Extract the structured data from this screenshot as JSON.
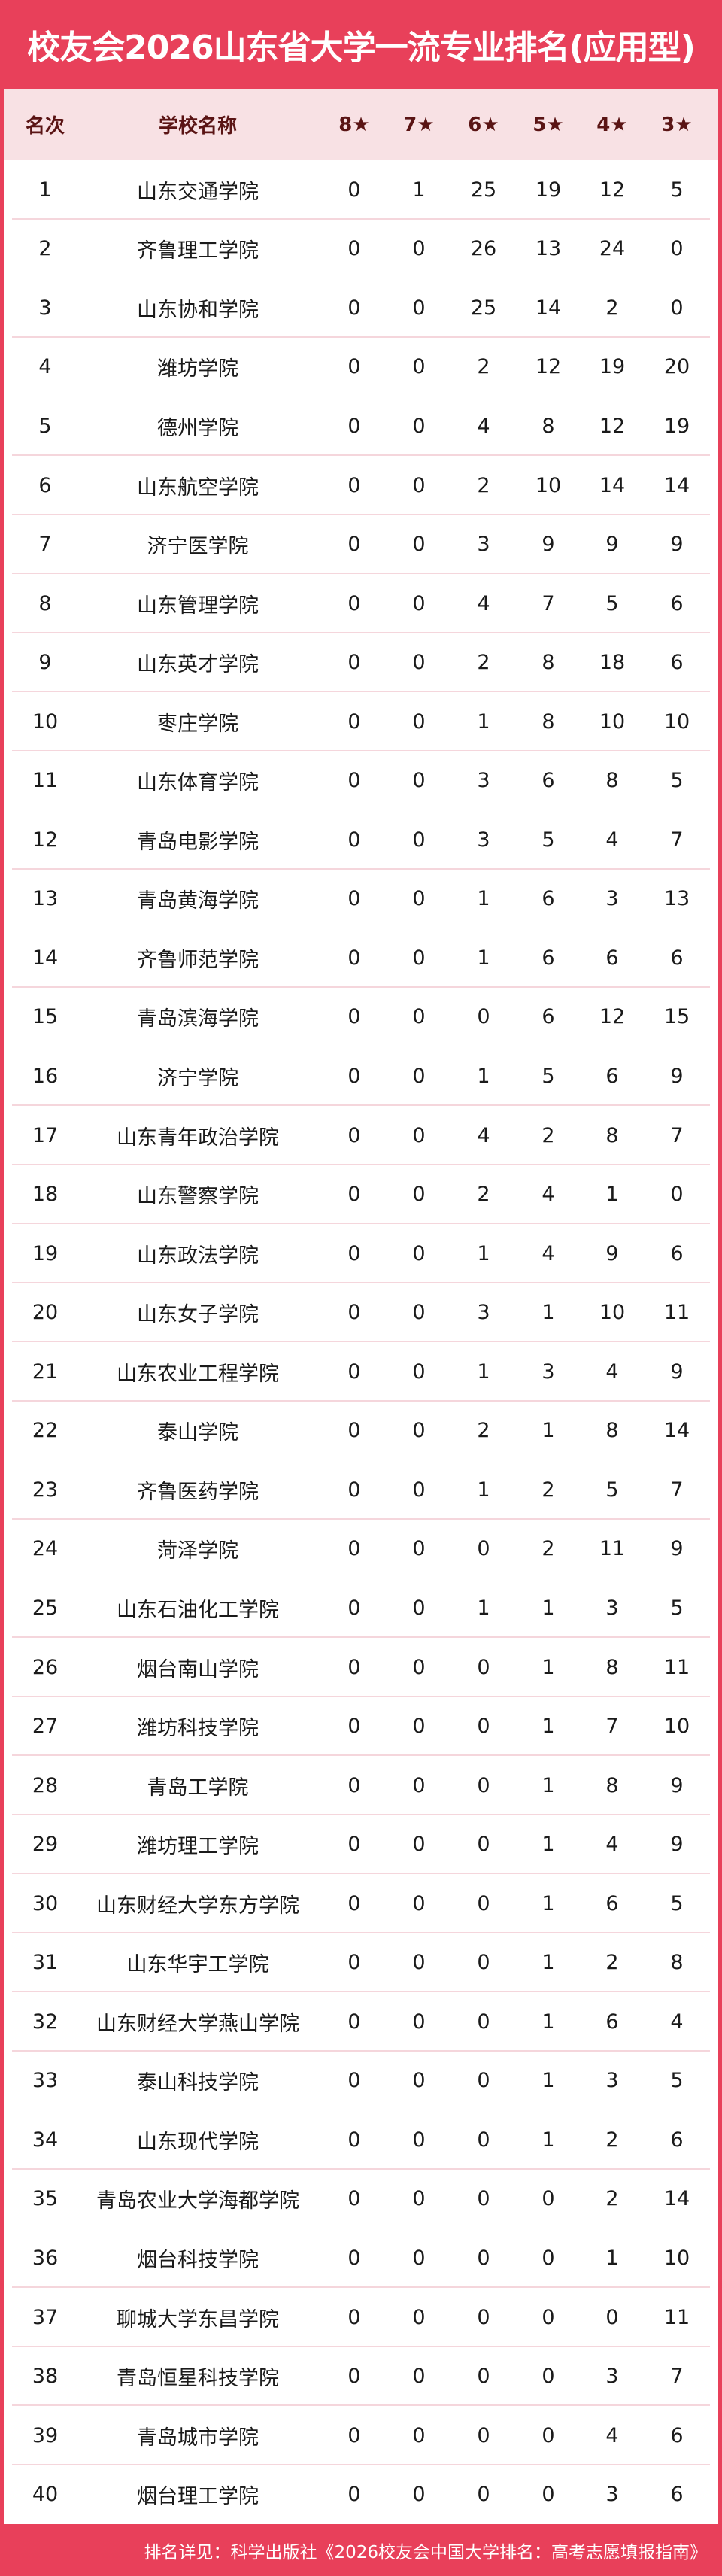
{
  "title": "校友会2026山东省大学一流专业排名(应用型)",
  "columns": [
    "名次",
    "学校名称",
    "8★",
    "7★",
    "6★",
    "5★",
    "4★",
    "3★"
  ],
  "colors": {
    "brand": "#e8405a",
    "header_bg": "#f8e1e4",
    "header_text": "#5a1414"
  },
  "rows": [
    [
      "1",
      "山东交通学院",
      "0",
      "1",
      "25",
      "19",
      "12",
      "5"
    ],
    [
      "2",
      "齐鲁理工学院",
      "0",
      "0",
      "26",
      "13",
      "24",
      "0"
    ],
    [
      "3",
      "山东协和学院",
      "0",
      "0",
      "25",
      "14",
      "2",
      "0"
    ],
    [
      "4",
      "潍坊学院",
      "0",
      "0",
      "2",
      "12",
      "19",
      "20"
    ],
    [
      "5",
      "德州学院",
      "0",
      "0",
      "4",
      "8",
      "12",
      "19"
    ],
    [
      "6",
      "山东航空学院",
      "0",
      "0",
      "2",
      "10",
      "14",
      "14"
    ],
    [
      "7",
      "济宁医学院",
      "0",
      "0",
      "3",
      "9",
      "9",
      "9"
    ],
    [
      "8",
      "山东管理学院",
      "0",
      "0",
      "4",
      "7",
      "5",
      "6"
    ],
    [
      "9",
      "山东英才学院",
      "0",
      "0",
      "2",
      "8",
      "18",
      "6"
    ],
    [
      "10",
      "枣庄学院",
      "0",
      "0",
      "1",
      "8",
      "10",
      "10"
    ],
    [
      "11",
      "山东体育学院",
      "0",
      "0",
      "3",
      "6",
      "8",
      "5"
    ],
    [
      "12",
      "青岛电影学院",
      "0",
      "0",
      "3",
      "5",
      "4",
      "7"
    ],
    [
      "13",
      "青岛黄海学院",
      "0",
      "0",
      "1",
      "6",
      "3",
      "13"
    ],
    [
      "14",
      "齐鲁师范学院",
      "0",
      "0",
      "1",
      "6",
      "6",
      "6"
    ],
    [
      "15",
      "青岛滨海学院",
      "0",
      "0",
      "0",
      "6",
      "12",
      "15"
    ],
    [
      "16",
      "济宁学院",
      "0",
      "0",
      "1",
      "5",
      "6",
      "9"
    ],
    [
      "17",
      "山东青年政治学院",
      "0",
      "0",
      "4",
      "2",
      "8",
      "7"
    ],
    [
      "18",
      "山东警察学院",
      "0",
      "0",
      "2",
      "4",
      "1",
      "0"
    ],
    [
      "19",
      "山东政法学院",
      "0",
      "0",
      "1",
      "4",
      "9",
      "6"
    ],
    [
      "20",
      "山东女子学院",
      "0",
      "0",
      "3",
      "1",
      "10",
      "11"
    ],
    [
      "21",
      "山东农业工程学院",
      "0",
      "0",
      "1",
      "3",
      "4",
      "9"
    ],
    [
      "22",
      "泰山学院",
      "0",
      "0",
      "2",
      "1",
      "8",
      "14"
    ],
    [
      "23",
      "齐鲁医药学院",
      "0",
      "0",
      "1",
      "2",
      "5",
      "7"
    ],
    [
      "24",
      "菏泽学院",
      "0",
      "0",
      "0",
      "2",
      "11",
      "9"
    ],
    [
      "25",
      "山东石油化工学院",
      "0",
      "0",
      "1",
      "1",
      "3",
      "5"
    ],
    [
      "26",
      "烟台南山学院",
      "0",
      "0",
      "0",
      "1",
      "8",
      "11"
    ],
    [
      "27",
      "潍坊科技学院",
      "0",
      "0",
      "0",
      "1",
      "7",
      "10"
    ],
    [
      "28",
      "青岛工学院",
      "0",
      "0",
      "0",
      "1",
      "8",
      "9"
    ],
    [
      "29",
      "潍坊理工学院",
      "0",
      "0",
      "0",
      "1",
      "4",
      "9"
    ],
    [
      "30",
      "山东财经大学东方学院",
      "0",
      "0",
      "0",
      "1",
      "6",
      "5"
    ],
    [
      "31",
      "山东华宇工学院",
      "0",
      "0",
      "0",
      "1",
      "2",
      "8"
    ],
    [
      "32",
      "山东财经大学燕山学院",
      "0",
      "0",
      "0",
      "1",
      "6",
      "4"
    ],
    [
      "33",
      "泰山科技学院",
      "0",
      "0",
      "0",
      "1",
      "3",
      "5"
    ],
    [
      "34",
      "山东现代学院",
      "0",
      "0",
      "0",
      "1",
      "2",
      "6"
    ],
    [
      "35",
      "青岛农业大学海都学院",
      "0",
      "0",
      "0",
      "0",
      "2",
      "14"
    ],
    [
      "36",
      "烟台科技学院",
      "0",
      "0",
      "0",
      "0",
      "1",
      "10"
    ],
    [
      "37",
      "聊城大学东昌学院",
      "0",
      "0",
      "0",
      "0",
      "0",
      "11"
    ],
    [
      "38",
      "青岛恒星科技学院",
      "0",
      "0",
      "0",
      "0",
      "3",
      "7"
    ],
    [
      "39",
      "青岛城市学院",
      "0",
      "0",
      "0",
      "0",
      "4",
      "6"
    ],
    [
      "40",
      "烟台理工学院",
      "0",
      "0",
      "0",
      "0",
      "3",
      "6"
    ]
  ],
  "footer": "排名详见：科学出版社《2026校友会中国大学排名：高考志愿填报指南》"
}
